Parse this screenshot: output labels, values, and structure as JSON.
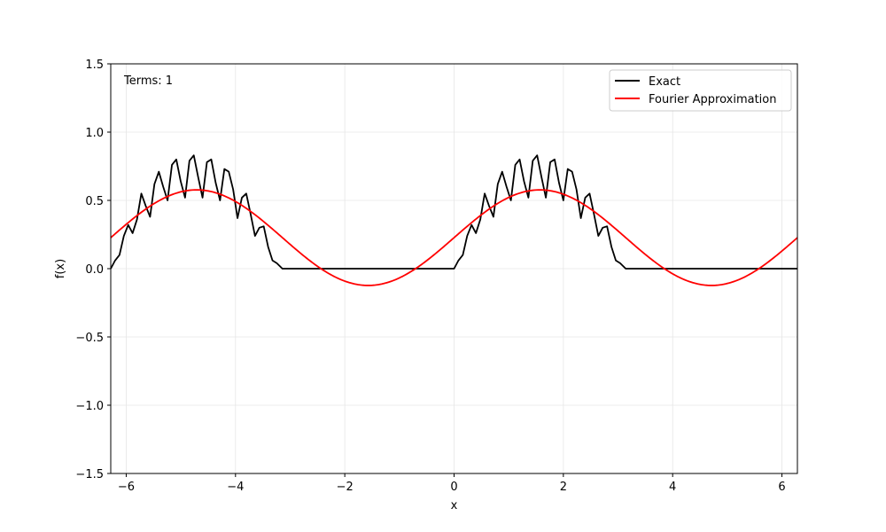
{
  "chart_data": {
    "type": "line",
    "xlabel": "x",
    "ylabel": "f(x)",
    "xlim": [
      -6.283,
      6.283
    ],
    "ylim": [
      -1.5,
      1.5
    ],
    "xticks": [
      -6,
      -4,
      -2,
      0,
      2,
      4,
      6
    ],
    "xtick_labels": [
      "−6",
      "−4",
      "−2",
      "0",
      "2",
      "4",
      "6"
    ],
    "yticks": [
      -1.5,
      -1.0,
      -0.5,
      0.0,
      0.5,
      1.0,
      1.5
    ],
    "ytick_labels": [
      "−1.5",
      "−1.0",
      "−0.5",
      "0.0",
      "0.5",
      "1.0",
      "1.5"
    ],
    "grid": true,
    "legend_position": "top-right",
    "annotation": "Terms: 1",
    "series": [
      {
        "name": "Exact",
        "color": "#000000",
        "x": [
          0.0,
          0.08,
          0.16,
          0.24,
          0.32,
          0.4,
          0.48,
          0.56,
          0.64,
          0.72,
          0.8,
          0.88,
          0.96,
          1.04,
          1.12,
          1.2,
          1.28,
          1.36,
          1.44,
          1.52,
          1.6,
          1.68,
          1.76,
          1.84,
          1.92,
          2.0,
          2.08,
          2.16,
          2.24,
          2.32,
          2.4,
          2.48,
          2.56,
          2.64,
          2.72,
          2.8,
          2.88,
          2.96,
          3.04,
          3.1416
        ],
        "y": [
          0.0,
          0.06,
          0.1,
          0.24,
          0.32,
          0.26,
          0.36,
          0.55,
          0.46,
          0.38,
          0.62,
          0.71,
          0.6,
          0.5,
          0.76,
          0.8,
          0.64,
          0.52,
          0.79,
          0.83,
          0.67,
          0.52,
          0.78,
          0.8,
          0.63,
          0.5,
          0.73,
          0.71,
          0.58,
          0.37,
          0.52,
          0.55,
          0.4,
          0.24,
          0.3,
          0.31,
          0.16,
          0.06,
          0.04,
          0.0
        ]
      },
      {
        "name": "Fourier Approximation",
        "color": "#ff0000",
        "formula_a": 0.227,
        "formula_b": 0.35
      }
    ]
  }
}
